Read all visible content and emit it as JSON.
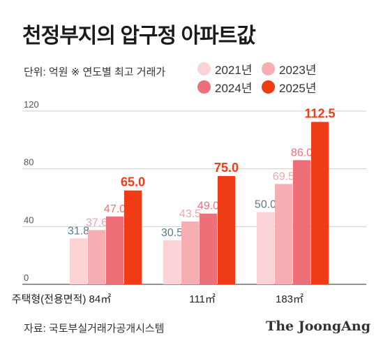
{
  "title": "천정부지의 압구정 아파트값",
  "subtitle": "단위: 억원  ※ 연도별 최고 거래가",
  "source": "자료: 국토부실거래가공개시스템",
  "brand": "The JoongAng",
  "chart_data": {
    "type": "bar",
    "categories": [
      "주택형(전용면적) 84㎡",
      "111㎡",
      "183㎡"
    ],
    "series": [
      {
        "name": "2021년",
        "color": "#fbd3d6",
        "label_color": "#5b7a8c",
        "values": [
          31.8,
          30.5,
          50.0
        ],
        "labels": [
          "31.8",
          "30.5",
          "50.0"
        ]
      },
      {
        "name": "2023년",
        "color": "#f7aeb2",
        "label_color": "#f2a4a8",
        "values": [
          37.6,
          43.5,
          69.5
        ],
        "labels": [
          "37.6",
          "43.5",
          "69.5"
        ]
      },
      {
        "name": "2024년",
        "color": "#ef6f78",
        "label_color": "#ee6f77",
        "values": [
          47.0,
          49.0,
          86.0
        ],
        "labels": [
          "47.0",
          "49.0",
          "86.0"
        ]
      },
      {
        "name": "2025년",
        "color": "#f03c14",
        "label_color": "#f03c14",
        "values": [
          65.0,
          75.0,
          112.5
        ],
        "labels": [
          "65.0",
          "75.0",
          "112.5"
        ]
      }
    ],
    "y_ticks": [
      0,
      40,
      80,
      120
    ],
    "ylim": [
      0,
      120
    ],
    "grid": true,
    "legend_position": "top-right"
  }
}
